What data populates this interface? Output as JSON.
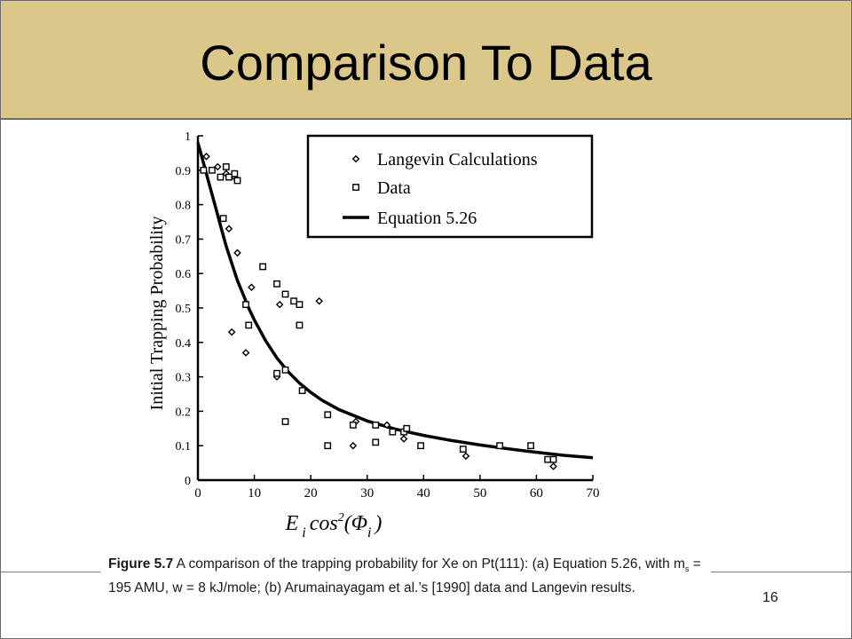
{
  "slide": {
    "title": "Comparison To Data",
    "page_number": "16"
  },
  "caption": {
    "figure_label": "Figure 5.7",
    "part1": "A comparison of the trapping probability for Xe on Pt(111):  (a) Equation 5.26, with m",
    "ms_sub": "s",
    "part2": " = 195 AMU, w = 8 kJ/mole;  (b) Arumainayagam et al.’s [1990] data and Langevin results."
  },
  "chart_data": {
    "type": "scatter",
    "title": "",
    "ylabel": "Initial Trapping Probability",
    "xlabel_base": "E",
    "xlabel_sub": "i",
    "xlabel_mid": "cos",
    "xlabel_sup": "2",
    "xlabel_paren_open": "(Φ",
    "xlabel_sub2": "i",
    "xlabel_paren_close": ")",
    "xlim": [
      0,
      70
    ],
    "ylim": [
      0,
      1
    ],
    "x_ticks": [
      "0",
      "10",
      "20",
      "30",
      "40",
      "50",
      "60",
      "70"
    ],
    "y_ticks": [
      "0",
      "0.1",
      "0.2",
      "0.3",
      "0.4",
      "0.5",
      "0.6",
      "0.7",
      "0.8",
      "0.9",
      "1"
    ],
    "legend_position": "top-right",
    "series": [
      {
        "name": "Langevin Calculations",
        "marker": "diamond",
        "points": [
          [
            1.5,
            0.94
          ],
          [
            3.5,
            0.91
          ],
          [
            5,
            0.89
          ],
          [
            5.5,
            0.73
          ],
          [
            6.5,
            0.88
          ],
          [
            7,
            0.66
          ],
          [
            8.5,
            0.37
          ],
          [
            6,
            0.43
          ],
          [
            9.5,
            0.56
          ],
          [
            14,
            0.3
          ],
          [
            14.5,
            0.51
          ],
          [
            21.5,
            0.52
          ],
          [
            27.5,
            0.1
          ],
          [
            28,
            0.17
          ],
          [
            33.5,
            0.16
          ],
          [
            36.5,
            0.12
          ],
          [
            47.5,
            0.07
          ],
          [
            63,
            0.04
          ]
        ]
      },
      {
        "name": "Data",
        "marker": "square",
        "points": [
          [
            1,
            0.9
          ],
          [
            2.5,
            0.9
          ],
          [
            4,
            0.88
          ],
          [
            5,
            0.91
          ],
          [
            5.5,
            0.88
          ],
          [
            6.5,
            0.89
          ],
          [
            7,
            0.87
          ],
          [
            4.5,
            0.76
          ],
          [
            8.5,
            0.51
          ],
          [
            9,
            0.45
          ],
          [
            11.5,
            0.62
          ],
          [
            14,
            0.57
          ],
          [
            15.5,
            0.54
          ],
          [
            17,
            0.52
          ],
          [
            18,
            0.51
          ],
          [
            18,
            0.45
          ],
          [
            14,
            0.31
          ],
          [
            15.5,
            0.32
          ],
          [
            15.5,
            0.17
          ],
          [
            18.5,
            0.26
          ],
          [
            23,
            0.19
          ],
          [
            23,
            0.1
          ],
          [
            27.5,
            0.16
          ],
          [
            31.5,
            0.11
          ],
          [
            31.5,
            0.16
          ],
          [
            34.5,
            0.14
          ],
          [
            36.5,
            0.14
          ],
          [
            37,
            0.15
          ],
          [
            39.5,
            0.1
          ],
          [
            47,
            0.09
          ],
          [
            53.5,
            0.1
          ],
          [
            59,
            0.1
          ],
          [
            62,
            0.06
          ],
          [
            63,
            0.06
          ]
        ]
      },
      {
        "name": "Equation 5.26",
        "marker": "line",
        "points": [
          [
            0,
            0.98
          ],
          [
            1,
            0.92
          ],
          [
            2,
            0.86
          ],
          [
            3,
            0.8
          ],
          [
            4,
            0.74
          ],
          [
            5,
            0.68
          ],
          [
            6,
            0.63
          ],
          [
            7,
            0.58
          ],
          [
            8,
            0.54
          ],
          [
            9,
            0.5
          ],
          [
            10,
            0.465
          ],
          [
            12,
            0.405
          ],
          [
            14,
            0.355
          ],
          [
            16,
            0.315
          ],
          [
            18,
            0.282
          ],
          [
            20,
            0.255
          ],
          [
            22,
            0.232
          ],
          [
            25,
            0.205
          ],
          [
            30,
            0.172
          ],
          [
            35,
            0.148
          ],
          [
            40,
            0.13
          ],
          [
            45,
            0.115
          ],
          [
            50,
            0.102
          ],
          [
            55,
            0.091
          ],
          [
            60,
            0.081
          ],
          [
            65,
            0.072
          ],
          [
            70,
            0.065
          ]
        ]
      }
    ]
  }
}
